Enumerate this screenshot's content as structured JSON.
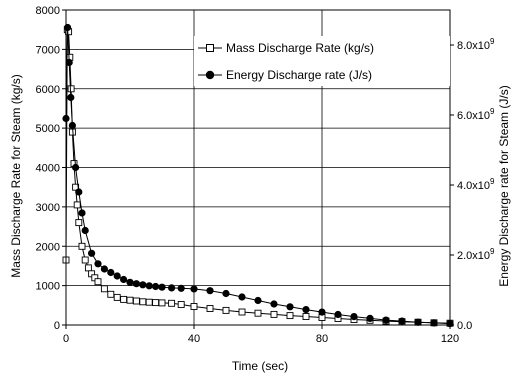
{
  "chart_data": {
    "type": "line",
    "title": "",
    "xlabel": "Time (sec)",
    "ylabel": "Mass Discharge Rate for Steam (kg/s)",
    "y2label": "Energy Discharge rate for Steam (J/s)",
    "xlim": [
      0,
      120
    ],
    "ylim": [
      0,
      8000
    ],
    "y2lim": [
      0,
      9000000000.0
    ],
    "x_ticks": [
      0,
      40,
      80,
      120
    ],
    "x_tick_labels": [
      "0",
      "40",
      "80",
      "120"
    ],
    "y_ticks": [
      0,
      1000,
      2000,
      3000,
      4000,
      5000,
      6000,
      7000,
      8000
    ],
    "y_tick_labels": [
      "0",
      "1000",
      "2000",
      "3000",
      "4000",
      "5000",
      "6000",
      "7000",
      "8000"
    ],
    "y2_ticks": [
      0,
      2000000000.0,
      4000000000.0,
      6000000000.0,
      8000000000.0
    ],
    "y2_tick_labels": [
      {
        "base": "0.0",
        "exp": ""
      },
      {
        "base": "2.0x10",
        "exp": "9"
      },
      {
        "base": "4.0x10",
        "exp": "9"
      },
      {
        "base": "6.0x10",
        "exp": "9"
      },
      {
        "base": "8.0x10",
        "exp": "9"
      }
    ],
    "grid": true,
    "legend_position": "top-right",
    "series": [
      {
        "name": "Mass Discharge Rate (kg/s)",
        "axis": "left",
        "marker": "open-square",
        "color": "#000000",
        "x": [
          0,
          0.4,
          0.8,
          1.2,
          1.6,
          2,
          2.5,
          3,
          3.5,
          4,
          5,
          6,
          7,
          8,
          9,
          10,
          12,
          14,
          16,
          18,
          20,
          22,
          24,
          26,
          28,
          30,
          33,
          36,
          40,
          45,
          50,
          55,
          60,
          65,
          70,
          75,
          80,
          85,
          90,
          95,
          100,
          105,
          110,
          115,
          120
        ],
        "y": [
          1650,
          7500,
          7450,
          6800,
          6000,
          4900,
          4100,
          3500,
          3050,
          2600,
          2000,
          1650,
          1450,
          1300,
          1200,
          1100,
          920,
          780,
          700,
          650,
          630,
          610,
          590,
          580,
          570,
          560,
          550,
          520,
          470,
          420,
          370,
          330,
          300,
          270,
          240,
          215,
          190,
          165,
          140,
          120,
          100,
          85,
          70,
          55,
          45
        ]
      },
      {
        "name": "Energy Discharge rate (J/s)",
        "axis": "right",
        "marker": "filled-circle",
        "color": "#000000",
        "x": [
          0,
          0.5,
          1,
          1.5,
          2,
          3,
          4,
          5,
          6,
          8,
          10,
          12,
          14,
          16,
          18,
          20,
          22,
          24,
          26,
          28,
          30,
          33,
          36,
          40,
          45,
          50,
          55,
          60,
          65,
          70,
          75,
          80,
          85,
          90,
          95,
          100,
          105,
          110,
          115,
          120
        ],
        "y": [
          5900000000.0,
          8500000000.0,
          7500000000.0,
          6500000000.0,
          5700000000.0,
          4500000000.0,
          3800000000.0,
          3200000000.0,
          2700000000.0,
          2050000000.0,
          1750000000.0,
          1600000000.0,
          1500000000.0,
          1400000000.0,
          1300000000.0,
          1220000000.0,
          1180000000.0,
          1150000000.0,
          1120000000.0,
          1100000000.0,
          1080000000.0,
          1060000000.0,
          1050000000.0,
          1030000000.0,
          980000000.0,
          900000000.0,
          800000000.0,
          700000000.0,
          600000000.0,
          520000000.0,
          440000000.0,
          370000000.0,
          300000000.0,
          240000000.0,
          190000000.0,
          140000000.0,
          110000000.0,
          80000000.0,
          60000000.0,
          40000000.0
        ]
      }
    ]
  }
}
